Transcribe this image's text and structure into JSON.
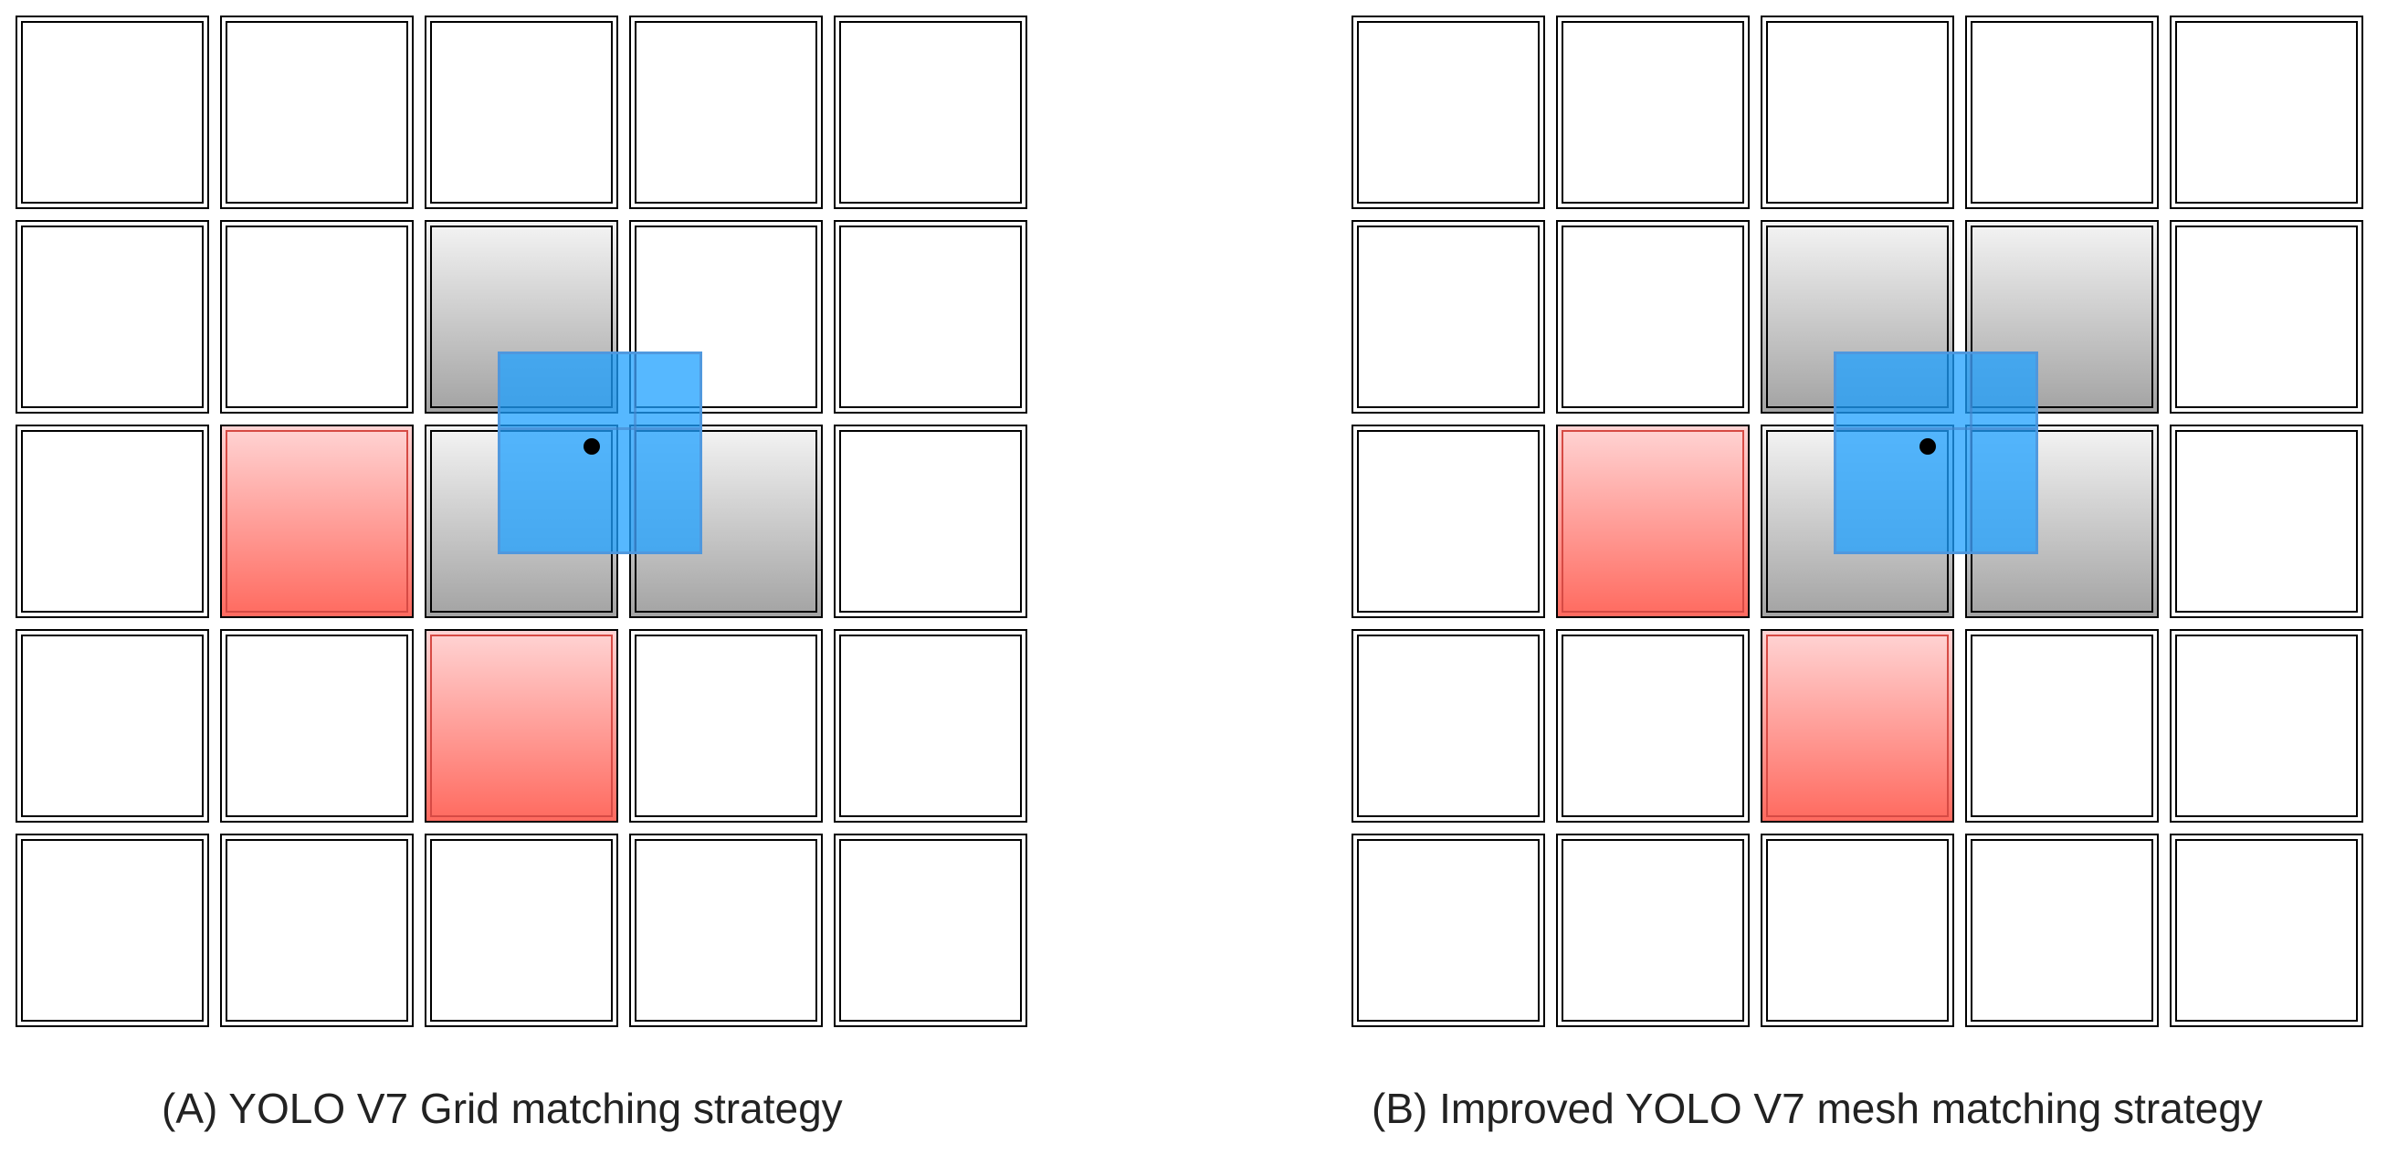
{
  "panels": [
    {
      "caption": "(A) YOLO V7 Grid matching strategy",
      "rows": 5,
      "cols": 5,
      "positive_cells": [
        [
          2,
          1
        ],
        [
          3,
          2
        ]
      ],
      "candidate_cells": [
        [
          1,
          2
        ],
        [
          2,
          2
        ],
        [
          2,
          3
        ]
      ]
    },
    {
      "caption": "(B) Improved YOLO V7 mesh matching strategy",
      "rows": 5,
      "cols": 5,
      "positive_cells": [
        [
          2,
          1
        ],
        [
          3,
          2
        ]
      ],
      "candidate_cells": [
        [
          1,
          2
        ],
        [
          1,
          3
        ],
        [
          2,
          2
        ],
        [
          2,
          3
        ]
      ]
    }
  ],
  "colors": {
    "positive_cell": "#ff6a5f",
    "candidate_cell": "#a3a3a3",
    "target_box": "#1ea0ff",
    "center_point": "#000000"
  }
}
